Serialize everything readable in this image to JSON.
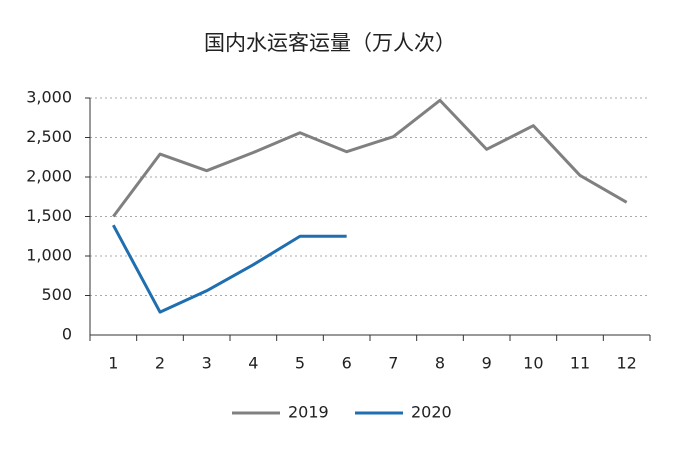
{
  "chart_data": {
    "type": "line",
    "title": "国内水运客运量（万人次）",
    "categories": [
      "1",
      "2",
      "3",
      "4",
      "5",
      "6",
      "7",
      "8",
      "9",
      "10",
      "11",
      "12"
    ],
    "series": [
      {
        "name": "2019",
        "color": "#808080",
        "values": [
          1500,
          2290,
          2080,
          2310,
          2560,
          2320,
          2510,
          2970,
          2350,
          2650,
          2020,
          1680
        ]
      },
      {
        "name": "2020",
        "color": "#1f6fb0",
        "values": [
          1390,
          290,
          560,
          890,
          1250,
          1250,
          null,
          null,
          null,
          null,
          null,
          null
        ]
      }
    ],
    "ylim": [
      0,
      3000
    ],
    "yticks": [
      0,
      500,
      {
        "value": 1000,
        "label": "1,000"
      },
      {
        "value": 1500,
        "label": "1,500"
      },
      {
        "value": 2000,
        "label": "2,000"
      },
      {
        "value": 2500,
        "label": "2,500"
      },
      {
        "value": 3000,
        "label": "3,000"
      }
    ],
    "grid": true,
    "legend": "bottom"
  }
}
